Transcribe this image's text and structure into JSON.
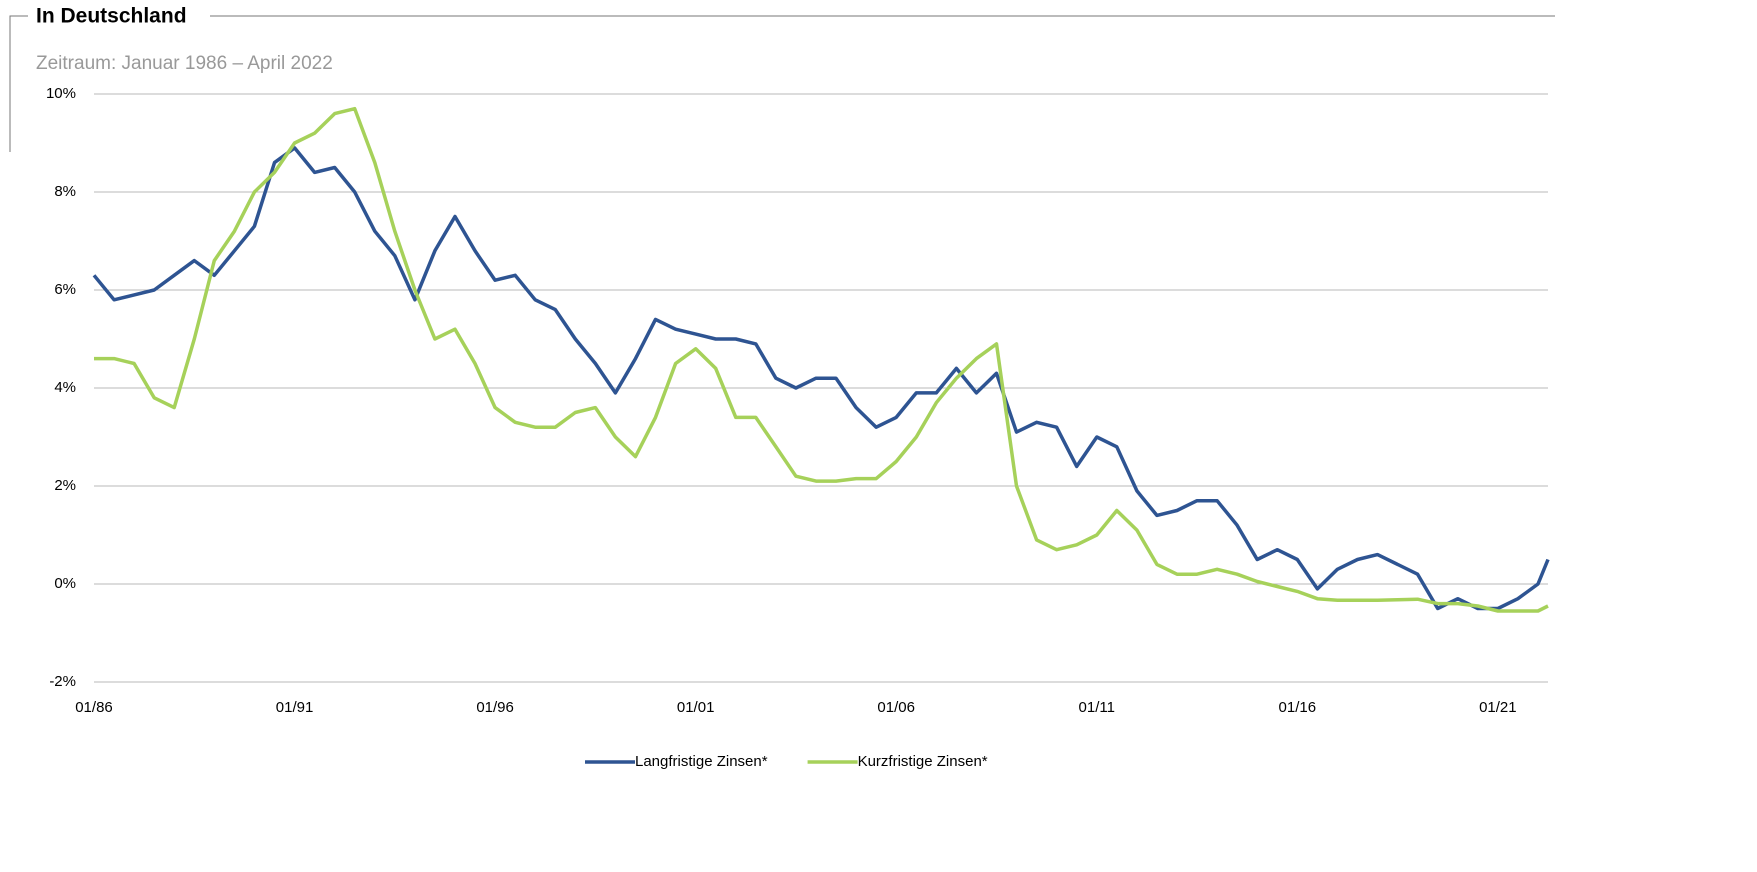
{
  "chart_data": {
    "type": "line",
    "title": "In Deutschland",
    "subtitle": "Zeitraum: Januar 1986 – April 2022",
    "x": [
      "01/86",
      "07/86",
      "01/87",
      "07/87",
      "01/88",
      "07/88",
      "01/89",
      "07/89",
      "01/90",
      "07/90",
      "01/91",
      "07/91",
      "01/92",
      "07/92",
      "01/93",
      "07/93",
      "01/94",
      "07/94",
      "01/95",
      "07/95",
      "01/96",
      "07/96",
      "01/97",
      "07/97",
      "01/98",
      "07/98",
      "01/99",
      "07/99",
      "01/00",
      "07/00",
      "01/01",
      "07/01",
      "01/02",
      "07/02",
      "01/03",
      "07/03",
      "01/04",
      "07/04",
      "01/05",
      "07/05",
      "01/06",
      "07/06",
      "01/07",
      "07/07",
      "01/08",
      "07/08",
      "01/09",
      "07/09",
      "01/10",
      "07/10",
      "01/11",
      "07/11",
      "01/12",
      "07/12",
      "01/13",
      "07/13",
      "01/14",
      "07/14",
      "01/15",
      "07/15",
      "01/16",
      "07/16",
      "01/17",
      "07/17",
      "01/18",
      "07/18",
      "01/19",
      "07/19",
      "01/20",
      "07/20",
      "01/21",
      "07/21",
      "01/22",
      "04/22"
    ],
    "series": [
      {
        "name": "Langfristige Zinsen*",
        "color": "#2e5492",
        "values": [
          6.3,
          5.8,
          5.9,
          6.0,
          6.3,
          6.6,
          6.3,
          6.8,
          7.3,
          8.6,
          8.9,
          8.4,
          8.5,
          8.0,
          7.2,
          6.7,
          5.8,
          6.8,
          7.5,
          6.8,
          6.2,
          6.3,
          5.8,
          5.6,
          5.0,
          4.5,
          3.9,
          4.6,
          5.4,
          5.2,
          5.1,
          5.0,
          5.0,
          4.9,
          4.2,
          4.0,
          4.2,
          4.2,
          3.6,
          3.2,
          3.4,
          3.9,
          3.9,
          4.4,
          3.9,
          4.3,
          3.1,
          3.3,
          3.2,
          2.4,
          3.0,
          2.8,
          1.9,
          1.4,
          1.5,
          1.7,
          1.7,
          1.2,
          0.5,
          0.7,
          0.5,
          -0.1,
          0.3,
          0.5,
          0.6,
          0.4,
          0.2,
          -0.5,
          -0.3,
          -0.5,
          -0.5,
          -0.3,
          0.0,
          0.5
        ]
      },
      {
        "name": "Kurzfristige Zinsen*",
        "color": "#a6d15a",
        "values": [
          4.6,
          4.6,
          4.5,
          3.8,
          3.6,
          5.0,
          6.6,
          7.2,
          8.0,
          8.4,
          9.0,
          9.2,
          9.6,
          9.7,
          8.6,
          7.2,
          6.0,
          5.0,
          5.2,
          4.5,
          3.6,
          3.3,
          3.2,
          3.2,
          3.5,
          3.6,
          3.0,
          2.6,
          3.4,
          4.5,
          4.8,
          4.4,
          3.4,
          3.4,
          2.8,
          2.2,
          2.1,
          2.1,
          2.15,
          2.15,
          2.5,
          3.0,
          3.7,
          4.2,
          4.6,
          4.9,
          2.0,
          0.9,
          0.7,
          0.8,
          1.0,
          1.5,
          1.1,
          0.4,
          0.2,
          0.2,
          0.3,
          0.2,
          0.05,
          -0.05,
          -0.15,
          -0.3,
          -0.33,
          -0.33,
          -0.33,
          -0.32,
          -0.31,
          -0.4,
          -0.4,
          -0.45,
          -0.55,
          -0.55,
          -0.55,
          -0.45
        ]
      }
    ],
    "xticks": [
      "01/86",
      "01/91",
      "01/96",
      "01/01",
      "01/06",
      "01/11",
      "01/16",
      "01/21"
    ],
    "ylim": [
      -2,
      10
    ],
    "yticks": [
      {
        "value": -2,
        "label": "-2%"
      },
      {
        "value": 0,
        "label": "0%"
      },
      {
        "value": 2,
        "label": "2%"
      },
      {
        "value": 4,
        "label": "4%"
      },
      {
        "value": 6,
        "label": "6%"
      },
      {
        "value": 8,
        "label": "8%"
      },
      {
        "value": 10,
        "label": "10%"
      }
    ],
    "grid": true,
    "legend": "bottom"
  }
}
